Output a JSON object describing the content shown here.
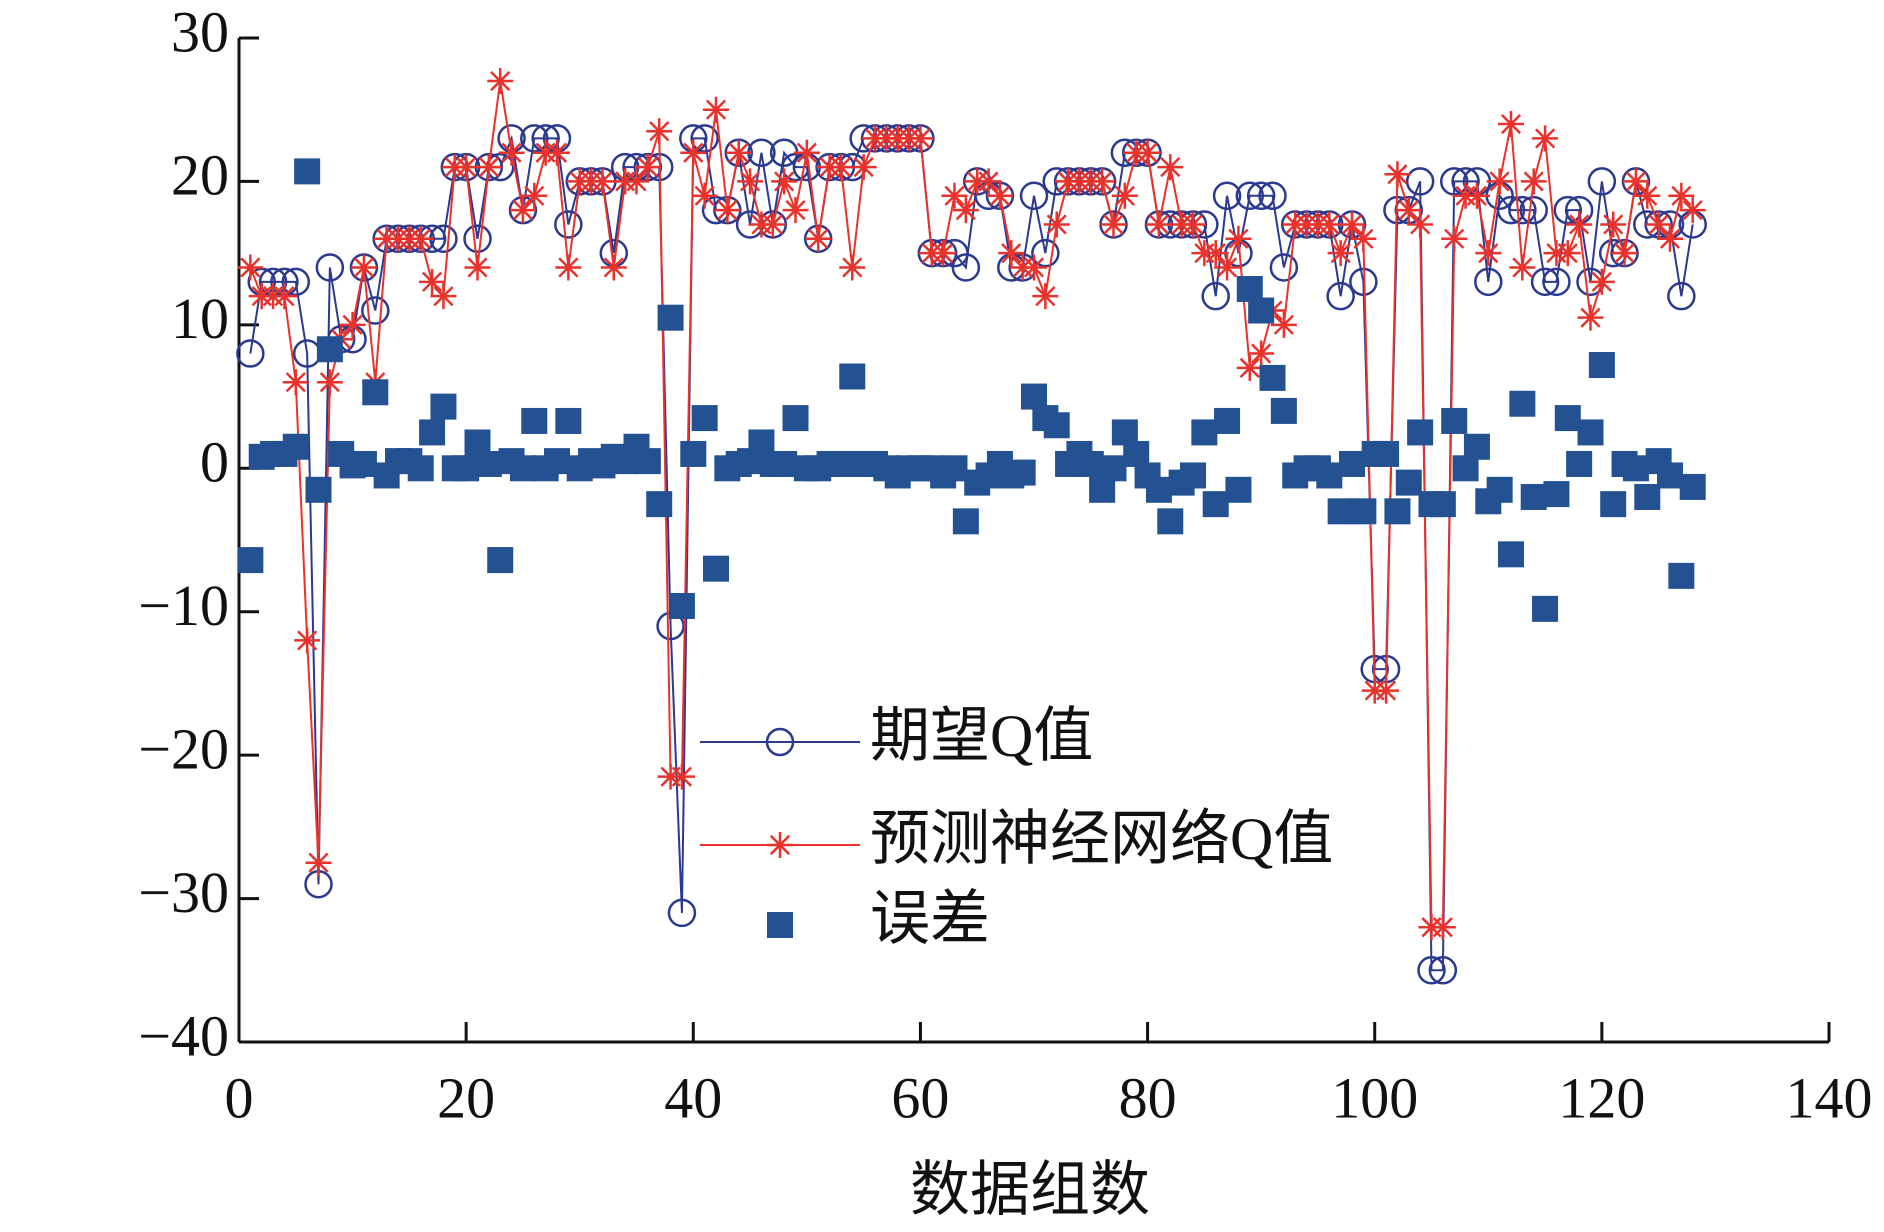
{
  "chart_data": {
    "type": "scatter",
    "xlabel": "数据组数",
    "xlim": [
      0,
      140
    ],
    "xticks": [
      0,
      20,
      40,
      60,
      80,
      100,
      120,
      140
    ],
    "ylim": [
      -40,
      30
    ],
    "yticks": [
      {
        "value": -40,
        "label": "−40"
      },
      {
        "value": -30,
        "label": "−30"
      },
      {
        "value": -20,
        "label": "−20"
      },
      {
        "value": -10,
        "label": "−10"
      },
      0,
      10,
      20,
      30
    ],
    "x": [
      1,
      2,
      3,
      4,
      5,
      6,
      7,
      8,
      9,
      10,
      11,
      12,
      13,
      14,
      15,
      16,
      17,
      18,
      19,
      20,
      21,
      22,
      23,
      24,
      25,
      26,
      27,
      28,
      29,
      30,
      31,
      32,
      33,
      34,
      35,
      36,
      37,
      38,
      39,
      40,
      41,
      42,
      43,
      44,
      45,
      46,
      47,
      48,
      49,
      50,
      51,
      52,
      53,
      54,
      55,
      56,
      57,
      58,
      59,
      60,
      61,
      62,
      63,
      64,
      65,
      66,
      67,
      68,
      69,
      70,
      71,
      72,
      73,
      74,
      75,
      76,
      77,
      78,
      79,
      80,
      81,
      82,
      83,
      84,
      85,
      86,
      87,
      88,
      89,
      90,
      91,
      92,
      93,
      94,
      95,
      96,
      97,
      98,
      99,
      100,
      101,
      102,
      103,
      104,
      105,
      106,
      107,
      108,
      109,
      110,
      111,
      112,
      113,
      114,
      115,
      116,
      117,
      118,
      119,
      120,
      121,
      122,
      123,
      124,
      125,
      126,
      127,
      128
    ],
    "series": [
      {
        "name": "期望Q值",
        "color": "#2b3a8f",
        "marker": "circle",
        "line": true,
        "values": [
          8,
          13,
          13,
          13,
          13,
          8,
          -29,
          14,
          9,
          9,
          14,
          11,
          16,
          16,
          16,
          16,
          16,
          16,
          21,
          21,
          16,
          21,
          21,
          23,
          18,
          23,
          23,
          23,
          17,
          20,
          20,
          20,
          15,
          21,
          21,
          21,
          21,
          -11,
          -31,
          23,
          23,
          18,
          18,
          22,
          17,
          22,
          17,
          22,
          21,
          21,
          16,
          21,
          21,
          21,
          23,
          23,
          23,
          23,
          23,
          23,
          15,
          15,
          15,
          14,
          20,
          19,
          19,
          14,
          14,
          19,
          15,
          20,
          20,
          20,
          20,
          20,
          17,
          22,
          22,
          22,
          17,
          17,
          17,
          17,
          17,
          12,
          19,
          15,
          19,
          19,
          19,
          14,
          17,
          17,
          17,
          17,
          12,
          17,
          13,
          -14,
          -14,
          18,
          18,
          20,
          -35,
          -35,
          20,
          20,
          20,
          13,
          19,
          18,
          18,
          18,
          13,
          13,
          18,
          18,
          13,
          20,
          15,
          15,
          20,
          17,
          17,
          17,
          12,
          17
        ]
      },
      {
        "name": "预测神经网络Q值",
        "color": "#e8322b",
        "marker": "star",
        "line": true,
        "values": [
          14,
          12,
          12,
          12,
          6,
          -12,
          -27.5,
          6,
          9,
          10,
          14,
          6,
          16,
          16,
          16,
          16,
          13,
          12,
          21,
          21,
          14,
          21,
          27,
          22,
          18,
          19,
          22,
          22,
          14,
          20,
          20,
          20,
          14,
          20,
          20,
          21,
          23.5,
          -21.5,
          -21.5,
          22,
          19,
          25,
          18,
          22,
          20,
          17,
          17,
          20,
          18,
          22,
          16,
          21,
          21,
          14,
          21,
          23,
          23,
          23,
          23,
          23,
          15,
          15,
          19,
          18,
          20,
          20,
          19,
          15,
          14,
          14,
          12,
          17,
          20,
          20,
          20,
          20,
          17,
          19,
          22,
          22,
          17,
          21,
          17,
          17,
          15,
          15,
          14,
          16,
          7,
          8,
          11,
          10,
          17,
          17,
          17,
          17,
          15,
          17,
          16,
          -15.5,
          -15.5,
          20.5,
          18,
          17,
          -32,
          -32,
          16,
          19,
          19,
          15,
          20,
          24,
          14,
          20,
          23,
          15,
          15,
          17,
          10.5,
          13,
          17,
          15,
          20,
          19,
          17,
          16,
          19,
          18
        ]
      },
      {
        "name": "误差",
        "color": "#245192",
        "marker": "square",
        "line": false,
        "values": [
          -6.4,
          0.8,
          1,
          1,
          1.5,
          20.7,
          -1.5,
          8.3,
          1,
          0.2,
          0.3,
          5.3,
          -0.5,
          0.5,
          0.5,
          0,
          2.5,
          4.3,
          0,
          0,
          1.8,
          0.3,
          -6.4,
          0.5,
          0,
          3.3,
          0,
          0.5,
          3.3,
          0,
          0.5,
          0.2,
          0.8,
          0.5,
          1.5,
          0.5,
          -2.5,
          10.5,
          -9.6,
          1,
          3.5,
          -7,
          0,
          0.3,
          0.5,
          1.8,
          0.3,
          0.3,
          3.5,
          0,
          0,
          0.3,
          0.3,
          6.4,
          0.3,
          0.3,
          0,
          -0.5,
          0,
          0,
          0,
          -0.5,
          0,
          -3.7,
          -1,
          -0.5,
          0.3,
          -0.5,
          -0.3,
          5,
          3.5,
          3,
          0.3,
          1,
          0.3,
          -1.5,
          0,
          2.5,
          1,
          -0.5,
          -1.5,
          -3.7,
          -1,
          -0.5,
          2.5,
          -2.5,
          3.3,
          -1.5,
          12.5,
          11,
          6.3,
          4,
          -0.5,
          0,
          0,
          -0.5,
          -3,
          0.3,
          -3,
          1,
          1,
          -3,
          -1,
          2.5,
          -2.5,
          -2.5,
          3.3,
          0,
          1.5,
          -2.3,
          -1.5,
          -6,
          4.5,
          -2,
          -9.8,
          -1.8,
          3.5,
          0.3,
          2.5,
          7.2,
          -2.5,
          0.3,
          0,
          -2,
          0.5,
          -0.5,
          -7.5,
          -1.3
        ]
      }
    ]
  }
}
